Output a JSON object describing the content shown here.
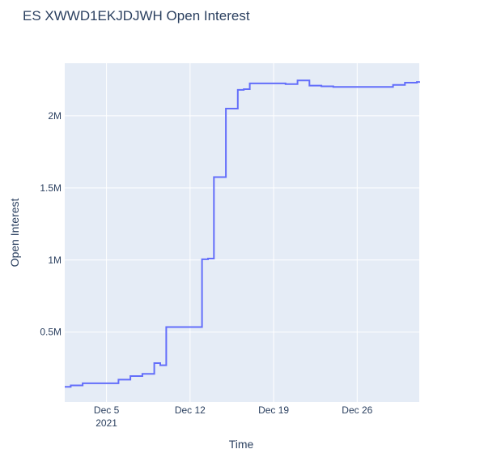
{
  "chart_data": {
    "type": "line",
    "line_shape": "step",
    "title": "ES XWWD1EKJDJWH Open Interest",
    "xlabel": "Time",
    "ylabel": "Open Interest",
    "x_start_date": "2021-11-30",
    "x_ticks": [
      {
        "x": 5,
        "label": "Dec 5",
        "sublabel": "2021"
      },
      {
        "x": 12,
        "label": "Dec 12",
        "sublabel": ""
      },
      {
        "x": 19,
        "label": "Dec 19",
        "sublabel": ""
      },
      {
        "x": 26,
        "label": "Dec 26",
        "sublabel": ""
      }
    ],
    "y_ticks": [
      {
        "y": 500000,
        "label": "0.5M"
      },
      {
        "y": 1000000,
        "label": "1M"
      },
      {
        "y": 1500000,
        "label": "1.5M"
      },
      {
        "y": 2000000,
        "label": "2M"
      }
    ],
    "xlim": [
      1.5,
      31.2
    ],
    "ylim": [
      15000,
      2365000
    ],
    "grid": true,
    "colors": {
      "plot_bg": "#e5ecf6",
      "grid": "#ffffff",
      "line": "#636efa"
    },
    "series": [
      {
        "x": [
          1.5,
          2,
          3,
          4,
          5,
          6,
          7,
          8,
          9,
          9.5,
          10,
          10.5,
          11,
          12,
          13,
          13.5,
          14,
          15,
          16,
          16.5,
          17,
          18,
          19,
          20,
          21,
          22,
          23,
          24,
          25,
          26,
          27,
          28,
          29,
          30,
          31,
          31.2
        ],
        "y": [
          120000,
          130000,
          145000,
          145000,
          145000,
          170000,
          195000,
          210000,
          285000,
          270000,
          535000,
          535000,
          535000,
          535000,
          1005000,
          1010000,
          1575000,
          2050000,
          2180000,
          2185000,
          2225000,
          2225000,
          2225000,
          2220000,
          2245000,
          2210000,
          2205000,
          2200000,
          2200000,
          2200000,
          2200000,
          2200000,
          2215000,
          2230000,
          2235000,
          2240000
        ]
      }
    ]
  }
}
